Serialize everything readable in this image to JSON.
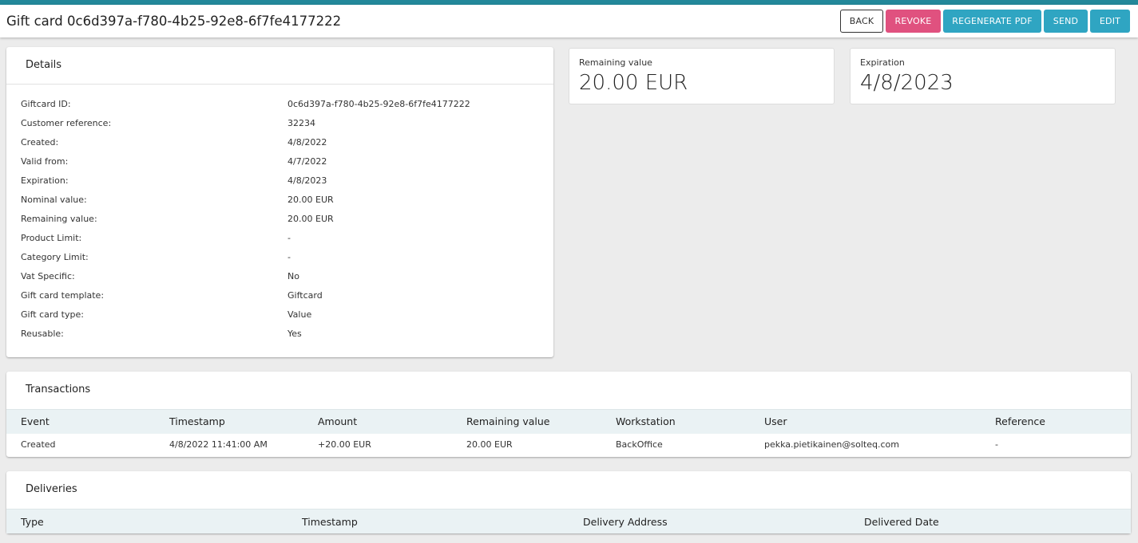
{
  "header": {
    "title": "Gift card 0c6d397a-f780-4b25-92e8-6f7fe4177222",
    "buttons": {
      "back": "BACK",
      "revoke": "REVOKE",
      "regenerate": "REGENERATE PDF",
      "send": "SEND",
      "edit": "EDIT"
    }
  },
  "colors": {
    "accent": "#23889a",
    "revoke": "#e0517f",
    "primary": "#2fa5c2"
  },
  "details": {
    "title": "Details",
    "rows": [
      {
        "label": "Giftcard ID:",
        "value": "0c6d397a-f780-4b25-92e8-6f7fe4177222"
      },
      {
        "label": "Customer reference:",
        "value": "32234"
      },
      {
        "label": "Created:",
        "value": "4/8/2022"
      },
      {
        "label": "Valid from:",
        "value": "4/7/2022"
      },
      {
        "label": "Expiration:",
        "value": "4/8/2023"
      },
      {
        "label": "Nominal value:",
        "value": "20.00 EUR"
      },
      {
        "label": "Remaining value:",
        "value": "20.00 EUR"
      },
      {
        "label": "Product Limit:",
        "value": "-"
      },
      {
        "label": "Category Limit:",
        "value": "-"
      },
      {
        "label": "Vat Specific:",
        "value": "No"
      },
      {
        "label": "Gift card template:",
        "value": "Giftcard"
      },
      {
        "label": "Gift card type:",
        "value": "Value"
      },
      {
        "label": "Reusable:",
        "value": "Yes"
      }
    ]
  },
  "summary": {
    "remaining": {
      "label": "Remaining value",
      "value": "20.00 EUR"
    },
    "expiration": {
      "label": "Expiration",
      "value": "4/8/2023"
    }
  },
  "transactions": {
    "title": "Transactions",
    "columns": [
      "Event",
      "Timestamp",
      "Amount",
      "Remaining value",
      "Workstation",
      "User",
      "Reference"
    ],
    "rows": [
      [
        "Created",
        "4/8/2022 11:41:00 AM",
        "+20.00 EUR",
        "20.00 EUR",
        "BackOffice",
        "pekka.pietikainen@solteq.com",
        "-"
      ]
    ]
  },
  "deliveries": {
    "title": "Deliveries",
    "columns": [
      "Type",
      "Timestamp",
      "Delivery Address",
      "Delivered Date"
    ]
  }
}
